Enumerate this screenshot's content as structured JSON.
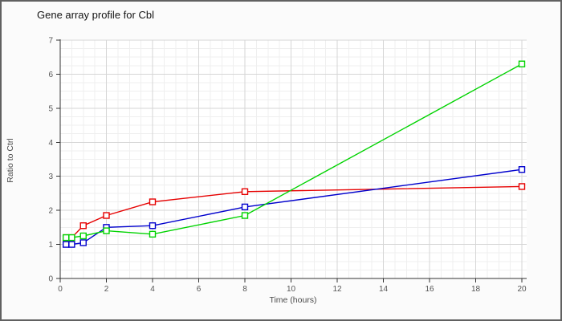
{
  "window": {
    "title": "Gene array profile for Cbl"
  },
  "chart_data": {
    "type": "line",
    "title": "Gene array profile for Cbl",
    "xlabel": "Time (hours)",
    "ylabel": "Ratio to Ctrl",
    "xlim": [
      0,
      20
    ],
    "ylim": [
      0,
      7
    ],
    "xticks": [
      0,
      2,
      4,
      6,
      8,
      10,
      12,
      14,
      16,
      18,
      20
    ],
    "yticks": [
      0,
      1,
      2,
      3,
      4,
      5,
      6,
      7
    ],
    "grid": {
      "major": true,
      "minor": true,
      "x_minor_step": 0.5,
      "y_minor_step": 0.25
    },
    "legend_position": "none",
    "marker": "open-square",
    "x": [
      0.25,
      0.5,
      1,
      2,
      4,
      8,
      20
    ],
    "series": [
      {
        "name": "red-series",
        "color": "#e60000",
        "values": [
          1.2,
          1.2,
          1.55,
          1.85,
          2.25,
          2.55,
          2.7
        ]
      },
      {
        "name": "blue-series",
        "color": "#0000cd",
        "values": [
          1.0,
          1.0,
          1.05,
          1.5,
          1.55,
          2.1,
          3.2
        ]
      },
      {
        "name": "green-series",
        "color": "#00d300",
        "values": [
          1.2,
          1.2,
          1.25,
          1.4,
          1.3,
          1.85,
          6.3
        ]
      }
    ]
  },
  "colors": {
    "background": "#fbfbfb",
    "plot_background": "#ffffff",
    "border": "#616161",
    "axis": "#333333",
    "grid_major": "#d6d6d6",
    "grid_minor": "#efefef",
    "tick_text": "#555555",
    "title_text": "#141414"
  }
}
